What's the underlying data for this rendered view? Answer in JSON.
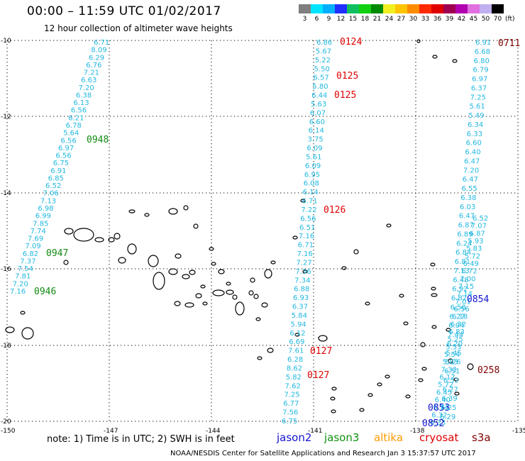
{
  "header": {
    "title": "00:00 – 11:59 UTC 01/02/2017",
    "subtitle": "12 hour collection of altimeter wave heights"
  },
  "colorbar": {
    "unit": "(ft)",
    "levels": [
      {
        "label": "3",
        "color": "#7f7f7f"
      },
      {
        "label": "6",
        "color": "#00e5ff"
      },
      {
        "label": "9",
        "color": "#00b0ff"
      },
      {
        "label": "12",
        "color": "#1f2fff"
      },
      {
        "label": "15",
        "color": "#10c060"
      },
      {
        "label": "18",
        "color": "#10d010"
      },
      {
        "label": "21",
        "color": "#008a00"
      },
      {
        "label": "24",
        "color": "#f0f020"
      },
      {
        "label": "27",
        "color": "#ffc400"
      },
      {
        "label": "30",
        "color": "#ff8c00"
      },
      {
        "label": "33",
        "color": "#ff2a00"
      },
      {
        "label": "36",
        "color": "#e00000"
      },
      {
        "label": "39",
        "color": "#a00050"
      },
      {
        "label": "42",
        "color": "#b000b0"
      },
      {
        "label": "45",
        "color": "#e070e0"
      },
      {
        "label": "50",
        "color": "#c0b0f0"
      },
      {
        "label": "70",
        "color": "#000000"
      }
    ]
  },
  "axes": {
    "lon_labels": [
      "-150",
      "-147",
      "-144",
      "-141",
      "-138",
      "-135"
    ],
    "lat_labels": [
      "-10",
      "-12",
      "-14",
      "-16",
      "-18",
      "-20"
    ]
  },
  "passes": {
    "left_green": {
      "swh": [
        "6.71",
        "8.09",
        "6.29",
        "6.76",
        "7.21",
        "6.63",
        "7.20",
        "6.38",
        "6.13",
        "6.56",
        "6.21",
        "6.78",
        "5.64",
        "6.56",
        "6.97",
        "6.56",
        "6.75",
        "6.91",
        "6.85",
        "6.52",
        "7.06",
        "7.13",
        "6.98",
        "6.99",
        "7.85",
        "7.74",
        "7.69",
        "7.09",
        "6.82",
        "7.37",
        "7.54",
        "7.81",
        "7.20",
        "7.16"
      ],
      "times": [
        "0948",
        "0947",
        "0946"
      ]
    },
    "middle_red": {
      "swh": [
        "6.86",
        "5.67",
        "5.22",
        "5.50",
        "6.57",
        "5.80",
        "6.44",
        "5.63",
        "6.07",
        "6.60",
        "6.14",
        "3.75",
        "6.09",
        "5.61",
        "6.09",
        "6.95",
        "6.08",
        "6.14",
        "6.71",
        "7.22",
        "6.56",
        "6.51",
        "7.16",
        "6.71",
        "7.16",
        "7.27",
        "7.36",
        "7.34",
        "6.88",
        "6.93",
        "6.37",
        "5.84",
        "5.94",
        "6.12",
        "6.69",
        "7.61",
        "6.28",
        "8.62",
        "5.82",
        "7.62",
        "7.25",
        "6.77",
        "7.56",
        "6.75"
      ],
      "times": [
        "0124",
        "0125",
        "0125",
        "0126",
        "0127",
        "0127"
      ]
    },
    "right_blue": {
      "swh": [
        "6.33",
        "6.32",
        "6.74",
        "6.40",
        "6.45",
        "5.72",
        "6.17",
        "7.33",
        "5.83",
        "5.54",
        "5.53",
        "5.25",
        "6.83",
        "6.32",
        "6.18",
        "6.56",
        "7.01",
        "7.14",
        "7.15",
        "7.00",
        "6.72",
        "6.49",
        "5.72",
        "5.83",
        "5.93",
        "6.87",
        "7.07",
        "6.52"
      ],
      "times": [
        "0854",
        "0853",
        "0852"
      ]
    },
    "right_cyan": {
      "swh": [
        "6.91",
        "6.68",
        "6.80",
        "6.79",
        "6.97",
        "6.37",
        "7.25",
        "5.61",
        "5.49",
        "6.34",
        "6.33",
        "6.60",
        "6.40",
        "6.47",
        "7.20",
        "6.47",
        "6.55",
        "6.38",
        "6.03",
        "6.47",
        "6.87",
        "6.89",
        "6.24",
        "6.84",
        "6.81",
        "7.13",
        "6.48",
        "6.92",
        "6.82",
        "6.58",
        "6.27",
        "6.94",
        "7.44",
        "6.20",
        "5.45",
        "5.26",
        "6.51",
        "6.52",
        "6.27",
        "6.39",
        "6.25",
        "6.29"
      ],
      "times": [
        "0711",
        "0258"
      ]
    }
  },
  "footer": {
    "note": "note: 1) Time is in UTC; 2) SWH is in feet",
    "satellites": [
      {
        "name": "jason2",
        "color": "#1414d0"
      },
      {
        "name": "jason3",
        "color": "#109010"
      },
      {
        "name": "altika",
        "color": "#ff9a00"
      },
      {
        "name": "cryosat",
        "color": "#e00000"
      },
      {
        "name": "s3a",
        "color": "#800000"
      }
    ],
    "credit": "NOAA/NESDIS Center for Satellite Applications and Research   Jan  3 15:37:57 UTC 2017"
  }
}
